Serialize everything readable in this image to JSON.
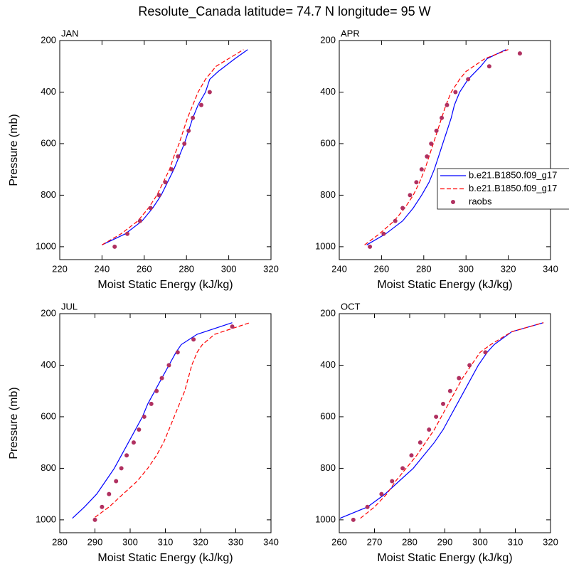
{
  "title": "Resolute_Canada  latitude= 74.7 N longitude= 95 W",
  "chart_data": [
    {
      "type": "line",
      "title": "JAN",
      "xlabel": "Moist Static Energy (kJ/kg)",
      "ylabel": "Pressure (mb)",
      "xlim": [
        220,
        320
      ],
      "xticks": [
        220,
        240,
        260,
        280,
        300,
        320
      ],
      "ylim": [
        200,
        1050
      ],
      "y_reversed": true,
      "yticks": [
        200,
        400,
        600,
        800,
        1000
      ],
      "series": [
        {
          "name": "b.e21.B1850.f09_g17",
          "color": "#0000ff",
          "style": "solid",
          "x": [
            240,
            251,
            259,
            264,
            268,
            271,
            274,
            276.5,
            279,
            281,
            283,
            285.5,
            289,
            291,
            295,
            303,
            309
          ],
          "values": [
            993,
            950,
            900,
            850,
            800,
            750,
            700,
            650,
            600,
            550,
            500,
            450,
            400,
            350,
            320,
            270,
            235
          ]
        },
        {
          "name": "b.e21.B1850.f09_g17",
          "color": "#ff0000",
          "style": "dashed",
          "x": [
            240,
            249,
            257,
            262,
            266,
            269,
            272,
            274,
            276.5,
            278.5,
            280.5,
            283,
            285.5,
            289,
            294,
            300,
            307
          ],
          "values": [
            993,
            950,
            900,
            850,
            800,
            750,
            700,
            650,
            600,
            550,
            500,
            450,
            400,
            350,
            300,
            270,
            235
          ]
        },
        {
          "name": "raobs",
          "color": "#b03060",
          "style": "markers",
          "x": [
            246,
            252,
            258,
            263,
            267,
            270,
            273,
            276,
            279,
            281,
            283,
            287,
            291
          ],
          "values": [
            1000,
            950,
            900,
            850,
            800,
            750,
            700,
            650,
            600,
            550,
            500,
            450,
            400
          ]
        }
      ]
    },
    {
      "type": "line",
      "title": "APR",
      "xlabel": "Moist Static Energy (kJ/kg)",
      "legend": "right",
      "xlim": [
        240,
        340
      ],
      "xticks": [
        240,
        260,
        280,
        300,
        320,
        340
      ],
      "ylim": [
        200,
        1050
      ],
      "y_reversed": true,
      "yticks": [
        200,
        400,
        600,
        800,
        1000
      ],
      "series": [
        {
          "name": "b.e21.B1850.f09_g17",
          "color": "#0000ff",
          "style": "solid",
          "x": [
            253,
            262,
            270,
            275,
            279,
            282.5,
            285,
            287,
            289,
            291,
            293,
            294.5,
            297,
            301,
            307,
            310,
            319
          ],
          "values": [
            993,
            950,
            900,
            850,
            800,
            750,
            700,
            650,
            600,
            550,
            500,
            450,
            400,
            350,
            300,
            270,
            235
          ]
        },
        {
          "name": "b.e21.B1850.f09_g17",
          "color": "#ff0000",
          "style": "dashed",
          "x": [
            252,
            259,
            266,
            271,
            275,
            278,
            280.5,
            282.5,
            284.5,
            286.5,
            288.5,
            290.5,
            293,
            297,
            300,
            309,
            320
          ],
          "values": [
            993,
            950,
            900,
            850,
            800,
            750,
            700,
            650,
            600,
            550,
            500,
            450,
            400,
            350,
            320,
            270,
            235
          ]
        },
        {
          "name": "raobs",
          "color": "#b03060",
          "style": "markers",
          "x": [
            254.5,
            261,
            266.5,
            270,
            273.5,
            276.5,
            279,
            281.5,
            283.5,
            286,
            288.5,
            291,
            295,
            301,
            311,
            325.5
          ],
          "values": [
            1000,
            950,
            900,
            850,
            800,
            750,
            700,
            650,
            600,
            550,
            500,
            450,
            400,
            350,
            300,
            250
          ]
        }
      ]
    },
    {
      "type": "line",
      "title": "JUL",
      "xlabel": "Moist Static Energy (kJ/kg)",
      "ylabel": "Pressure (mb)",
      "xlim": [
        280,
        340
      ],
      "xticks": [
        280,
        290,
        300,
        310,
        320,
        330,
        340
      ],
      "ylim": [
        200,
        1050
      ],
      "y_reversed": true,
      "yticks": [
        200,
        400,
        600,
        800,
        1000
      ],
      "series": [
        {
          "name": "b.e21.B1850.f09_g17",
          "color": "#0000ff",
          "style": "solid",
          "x": [
            283.6,
            287,
            290.5,
            293,
            295.5,
            297.5,
            299.5,
            301.5,
            303.5,
            305,
            307,
            309,
            311,
            313,
            314.5,
            319,
            329
          ],
          "values": [
            994,
            950,
            900,
            850,
            800,
            750,
            700,
            650,
            600,
            550,
            500,
            450,
            400,
            350,
            320,
            280,
            235
          ]
        },
        {
          "name": "b.e21.B1850.f09_g17",
          "color": "#ff0000",
          "style": "dashed",
          "x": [
            290,
            294,
            298,
            302,
            305,
            307.5,
            309.5,
            311,
            312.5,
            314,
            315.5,
            316.5,
            317.5,
            319,
            320.5,
            324,
            334
          ],
          "values": [
            990,
            950,
            900,
            850,
            800,
            750,
            700,
            650,
            600,
            550,
            500,
            450,
            400,
            350,
            320,
            280,
            235
          ]
        },
        {
          "name": "raobs",
          "color": "#b03060",
          "style": "markers",
          "x": [
            290,
            292,
            294,
            296,
            297.5,
            299,
            301,
            302.5,
            304,
            306,
            307.5,
            309,
            311,
            313.5,
            318,
            329
          ],
          "values": [
            1000,
            950,
            900,
            850,
            800,
            750,
            700,
            650,
            600,
            550,
            500,
            450,
            400,
            350,
            300,
            250
          ]
        }
      ]
    },
    {
      "type": "line",
      "title": "OCT",
      "xlabel": "Moist Static Energy (kJ/kg)",
      "xlim": [
        260,
        320
      ],
      "xticks": [
        260,
        270,
        280,
        290,
        300,
        310,
        320
      ],
      "ylim": [
        200,
        1050
      ],
      "y_reversed": true,
      "yticks": [
        200,
        400,
        600,
        800,
        1000
      ],
      "series": [
        {
          "name": "b.e21.B1850.f09_g17",
          "color": "#0000ff",
          "style": "solid",
          "x": [
            260.2,
            268,
            273,
            277,
            281,
            284,
            287,
            289.5,
            291.5,
            293.5,
            295.5,
            297.5,
            299.5,
            302,
            304,
            309,
            318
          ],
          "values": [
            994,
            950,
            900,
            850,
            800,
            750,
            700,
            650,
            600,
            550,
            500,
            450,
            400,
            350,
            320,
            270,
            235
          ]
        },
        {
          "name": "b.e21.B1850.f09_g17",
          "color": "#ff0000",
          "style": "dashed",
          "x": [
            266,
            270,
            273.5,
            276,
            279,
            282,
            284.5,
            287,
            289,
            291,
            293,
            295,
            297.5,
            300,
            303,
            309,
            318
          ],
          "values": [
            994,
            950,
            900,
            850,
            800,
            750,
            700,
            650,
            600,
            550,
            500,
            450,
            400,
            350,
            320,
            270,
            235
          ]
        },
        {
          "name": "raobs",
          "color": "#b03060",
          "style": "markers",
          "x": [
            264,
            268,
            272,
            275,
            278,
            280.5,
            283,
            285.5,
            287.5,
            289.5,
            291.5,
            294,
            297,
            301.5
          ],
          "values": [
            1000,
            950,
            900,
            850,
            800,
            750,
            700,
            650,
            600,
            550,
            500,
            450,
            400,
            350
          ]
        }
      ]
    }
  ]
}
